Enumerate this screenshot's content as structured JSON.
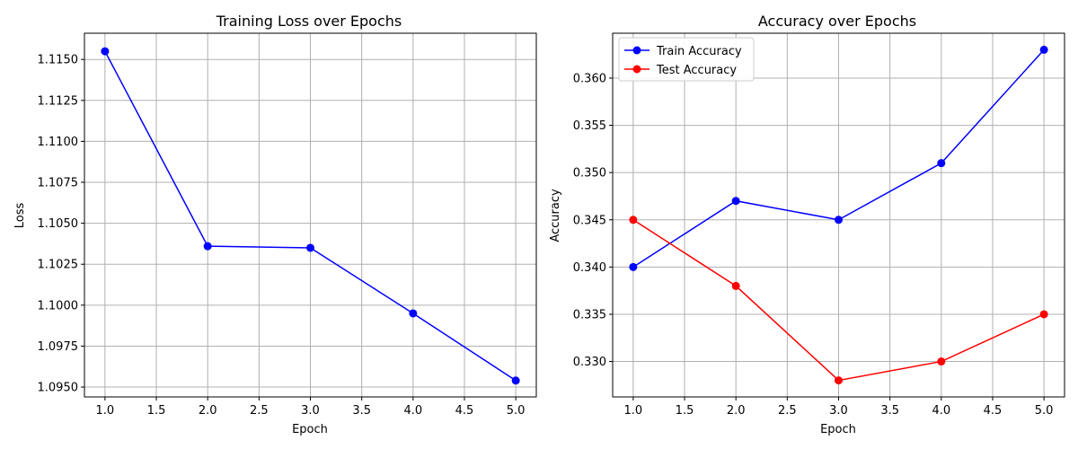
{
  "chart_data": [
    {
      "type": "line",
      "title": "Training Loss over Epochs",
      "xlabel": "Epoch",
      "ylabel": "Loss",
      "grid": true,
      "xlim": [
        0.8,
        5.2
      ],
      "ylim": [
        1.0944,
        1.1166
      ],
      "xticks": [
        1.0,
        1.5,
        2.0,
        2.5,
        3.0,
        3.5,
        4.0,
        4.5,
        5.0
      ],
      "xtick_labels": [
        "1.0",
        "1.5",
        "2.0",
        "2.5",
        "3.0",
        "3.5",
        "4.0",
        "4.5",
        "5.0"
      ],
      "yticks": [
        1.095,
        1.0975,
        1.1,
        1.1025,
        1.105,
        1.1075,
        1.11,
        1.1125,
        1.115
      ],
      "ytick_labels": [
        "1.0950",
        "1.0975",
        "1.1000",
        "1.1025",
        "1.1050",
        "1.1075",
        "1.1100",
        "1.1125",
        "1.1150"
      ],
      "x": [
        1,
        2,
        3,
        4,
        5
      ],
      "series": [
        {
          "values": [
            1.1155,
            1.1036,
            1.1035,
            1.0995,
            1.0954
          ],
          "color": "#0000ff",
          "marker": "circle"
        }
      ]
    },
    {
      "type": "line",
      "title": "Accuracy over Epochs",
      "xlabel": "Epoch",
      "ylabel": "Accuracy",
      "grid": true,
      "legend": "top-left",
      "xlim": [
        0.8,
        5.2
      ],
      "ylim": [
        0.32625,
        0.36475
      ],
      "xticks": [
        1.0,
        1.5,
        2.0,
        2.5,
        3.0,
        3.5,
        4.0,
        4.5,
        5.0
      ],
      "xtick_labels": [
        "1.0",
        "1.5",
        "2.0",
        "2.5",
        "3.0",
        "3.5",
        "4.0",
        "4.5",
        "5.0"
      ],
      "yticks": [
        0.33,
        0.335,
        0.34,
        0.345,
        0.35,
        0.355,
        0.36
      ],
      "ytick_labels": [
        "0.330",
        "0.335",
        "0.340",
        "0.345",
        "0.350",
        "0.355",
        "0.360"
      ],
      "x": [
        1,
        2,
        3,
        4,
        5
      ],
      "series": [
        {
          "name": "Train Accuracy",
          "values": [
            0.34,
            0.347,
            0.345,
            0.351,
            0.363
          ],
          "color": "#0000ff",
          "marker": "circle"
        },
        {
          "name": "Test Accuracy",
          "values": [
            0.345,
            0.338,
            0.328,
            0.33,
            0.335
          ],
          "color": "#ff0000",
          "marker": "circle"
        }
      ]
    }
  ]
}
